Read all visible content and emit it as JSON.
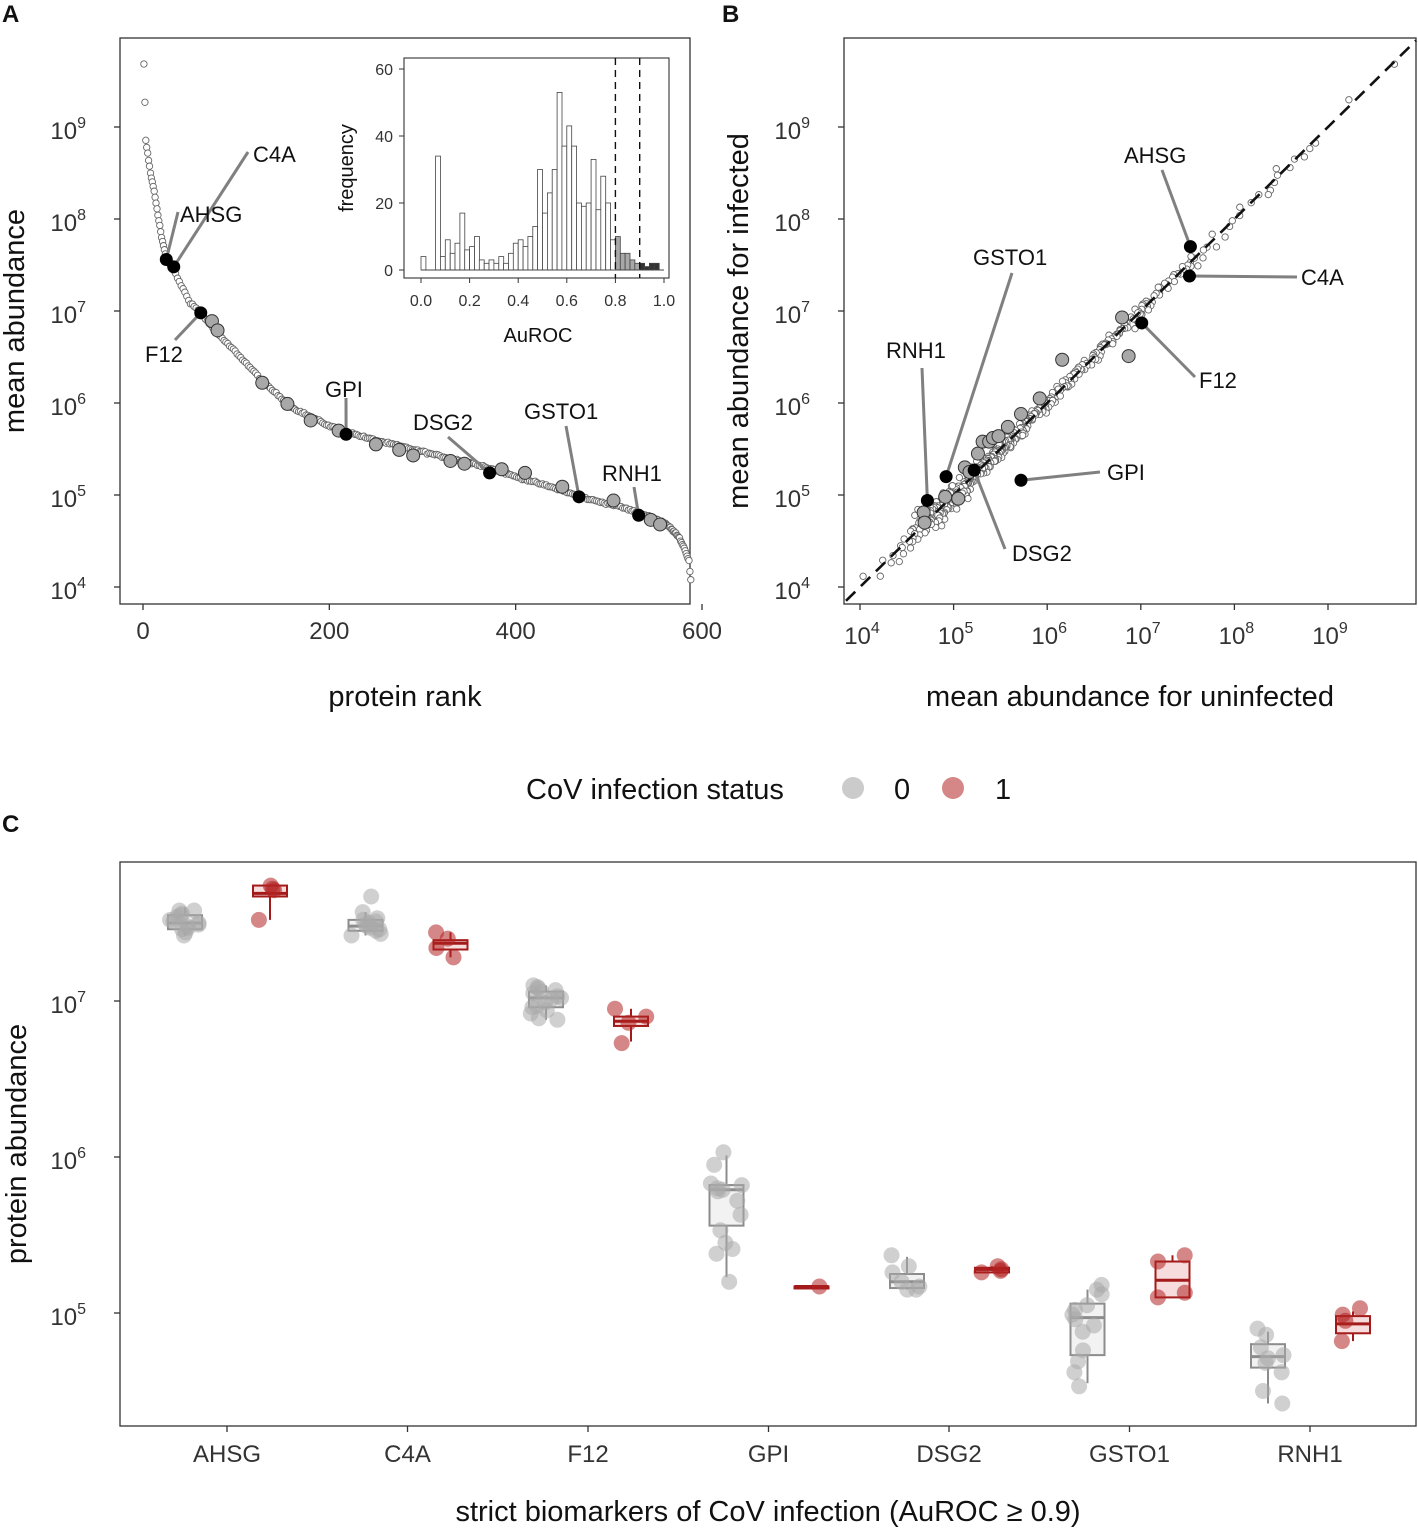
{
  "figure": {
    "panels": [
      {
        "id": "A",
        "label": "A"
      },
      {
        "id": "B",
        "label": "B"
      },
      {
        "id": "C",
        "label": "C"
      }
    ]
  },
  "legend": {
    "title": "CoV infection status",
    "items": [
      {
        "label": "0",
        "color": "#a9a9a9"
      },
      {
        "label": "1",
        "color": "#b22222"
      }
    ]
  },
  "chart_data": [
    {
      "panel": "A",
      "type": "scatter",
      "xlabel": "protein rank",
      "ylabel": "mean abundance",
      "xlim": [
        0,
        600
      ],
      "ylim_log10": [
        3.85,
        10.0
      ],
      "xticks": [
        "0",
        "200",
        "400",
        "600"
      ],
      "yticks": [
        {
          "base": "10",
          "exp": "4"
        },
        {
          "base": "10",
          "exp": "5"
        },
        {
          "base": "10",
          "exp": "6"
        },
        {
          "base": "10",
          "exp": "7"
        },
        {
          "base": "10",
          "exp": "8"
        },
        {
          "base": "10",
          "exp": "9"
        }
      ],
      "curve_log10": [
        [
          1,
          9.68
        ],
        [
          3,
          8.85
        ],
        [
          8,
          8.5
        ],
        [
          12,
          8.3
        ],
        [
          16,
          8.05
        ],
        [
          20,
          7.8
        ],
        [
          25,
          7.57
        ],
        [
          30,
          7.5
        ],
        [
          40,
          7.3
        ],
        [
          50,
          7.1
        ],
        [
          62,
          6.98
        ],
        [
          80,
          6.75
        ],
        [
          100,
          6.55
        ],
        [
          130,
          6.22
        ],
        [
          160,
          5.95
        ],
        [
          200,
          5.75
        ],
        [
          240,
          5.62
        ],
        [
          280,
          5.52
        ],
        [
          320,
          5.42
        ],
        [
          360,
          5.33
        ],
        [
          400,
          5.2
        ],
        [
          440,
          5.08
        ],
        [
          480,
          4.95
        ],
        [
          510,
          4.88
        ],
        [
          540,
          4.78
        ],
        [
          560,
          4.7
        ],
        [
          575,
          4.55
        ],
        [
          582,
          4.4
        ],
        [
          586,
          4.28
        ],
        [
          588,
          4.07
        ]
      ],
      "highlighted_grey": [
        [
          74,
          6.89
        ],
        [
          80,
          6.79
        ],
        [
          128,
          6.22
        ],
        [
          155,
          5.99
        ],
        [
          180,
          5.81
        ],
        [
          210,
          5.7
        ],
        [
          250,
          5.55
        ],
        [
          275,
          5.49
        ],
        [
          290,
          5.43
        ],
        [
          330,
          5.37
        ],
        [
          345,
          5.34
        ],
        [
          385,
          5.28
        ],
        [
          410,
          5.24
        ],
        [
          450,
          5.09
        ],
        [
          505,
          4.94
        ],
        [
          545,
          4.73
        ],
        [
          555,
          4.68
        ]
      ],
      "labeled": [
        {
          "name": "C4A",
          "x": 33,
          "y": 7.48
        },
        {
          "name": "AHSG",
          "x": 25,
          "y": 7.56
        },
        {
          "name": "F12",
          "x": 62,
          "y": 6.98
        },
        {
          "name": "GPI",
          "x": 218,
          "y": 5.66
        },
        {
          "name": "DSG2",
          "x": 372,
          "y": 5.24
        },
        {
          "name": "GSTO1",
          "x": 468,
          "y": 4.98
        },
        {
          "name": "RNH1",
          "x": 532,
          "y": 4.78
        }
      ],
      "inset": {
        "type": "histogram",
        "xlabel": "AuROC",
        "ylabel": "frequency",
        "xlim": [
          -0.05,
          1.02
        ],
        "ylim": [
          0,
          62
        ],
        "xticks": [
          "0.0",
          "0.2",
          "0.4",
          "0.6",
          "0.8",
          "1.0"
        ],
        "yticks": [
          "0",
          "20",
          "40",
          "60"
        ],
        "vlines": [
          0.8,
          0.9
        ],
        "bin_width": 0.02,
        "bins_start": [
          0.0,
          0.02,
          0.04,
          0.06,
          0.08,
          0.1,
          0.12,
          0.14,
          0.16,
          0.18,
          0.2,
          0.22,
          0.24,
          0.26,
          0.28,
          0.3,
          0.32,
          0.34,
          0.36,
          0.38,
          0.4,
          0.42,
          0.44,
          0.46,
          0.48,
          0.5,
          0.52,
          0.54,
          0.56,
          0.58,
          0.6,
          0.62,
          0.64,
          0.66,
          0.68,
          0.7,
          0.72,
          0.74,
          0.76,
          0.78,
          0.8,
          0.82,
          0.84,
          0.86,
          0.88,
          0.9,
          0.92,
          0.94,
          0.96
        ],
        "counts": [
          4,
          0,
          0,
          34,
          4,
          9,
          5,
          8,
          17,
          6,
          7,
          10,
          3,
          2,
          3,
          2,
          4,
          2,
          5,
          8,
          9,
          7,
          10,
          13,
          30,
          17,
          23,
          30,
          53,
          37,
          43,
          37,
          20,
          19,
          20,
          33,
          18,
          28,
          20,
          9,
          10,
          5,
          5,
          3,
          2,
          2,
          1,
          2,
          2
        ]
      }
    },
    {
      "panel": "B",
      "type": "scatter",
      "xlabel": "mean abundance for uninfected",
      "ylabel": "mean abundance for infected",
      "xlim_log10": [
        3.85,
        9.95
      ],
      "ylim_log10": [
        3.85,
        9.95
      ],
      "ticks": [
        {
          "base": "10",
          "exp": "4"
        },
        {
          "base": "10",
          "exp": "5"
        },
        {
          "base": "10",
          "exp": "6"
        },
        {
          "base": "10",
          "exp": "7"
        },
        {
          "base": "10",
          "exp": "8"
        },
        {
          "base": "10",
          "exp": "9"
        }
      ],
      "reference_line": "y = x",
      "highlighted_grey": [
        [
          4.68,
          4.81
        ],
        [
          4.69,
          4.7
        ],
        [
          4.91,
          4.98
        ],
        [
          5.05,
          4.96
        ],
        [
          5.12,
          5.3
        ],
        [
          5.17,
          5.25
        ],
        [
          5.26,
          5.45
        ],
        [
          5.31,
          5.58
        ],
        [
          5.38,
          5.58
        ],
        [
          5.42,
          5.62
        ],
        [
          5.48,
          5.64
        ],
        [
          5.58,
          5.74
        ],
        [
          5.72,
          5.88
        ],
        [
          5.92,
          6.05
        ],
        [
          6.16,
          6.47
        ],
        [
          6.8,
          6.93
        ],
        [
          6.87,
          6.51
        ]
      ],
      "labeled": [
        {
          "name": "AHSG",
          "x": 7.53,
          "y": 7.7
        },
        {
          "name": "C4A",
          "x": 7.52,
          "y": 7.38
        },
        {
          "name": "F12",
          "x": 7.01,
          "y": 6.87
        },
        {
          "name": "GSTO1",
          "x": 4.92,
          "y": 5.2
        },
        {
          "name": "RNH1",
          "x": 4.72,
          "y": 4.94
        },
        {
          "name": "GPI",
          "x": 5.72,
          "y": 5.16
        },
        {
          "name": "DSG2",
          "x": 5.22,
          "y": 5.27
        }
      ]
    },
    {
      "panel": "C",
      "type": "box",
      "xlabel": "strict biomarkers of CoV infection (AuROC ≥ 0.9)",
      "ylabel": "protein abundance",
      "ylim_log10": [
        4.24,
        7.92
      ],
      "categories": [
        "AHSG",
        "C4A",
        "F12",
        "GPI",
        "DSG2",
        "GSTO1",
        "RNH1"
      ],
      "yticks": [
        {
          "base": "10",
          "exp": "5"
        },
        {
          "base": "10",
          "exp": "6"
        },
        {
          "base": "10",
          "exp": "7"
        }
      ],
      "series": [
        {
          "name": "0",
          "color": "#a9a9a9",
          "boxes": [
            {
              "category": "AHSG",
              "q1": 7.46,
              "median": 7.5,
              "q3": 7.55,
              "low": 7.42,
              "high": 7.6,
              "points": [
                7.58,
                7.56,
                7.54,
                7.52,
                7.51,
                7.5,
                7.49,
                7.48,
                7.47,
                7.46,
                7.44,
                7.42,
                7.58,
                7.55
              ]
            },
            {
              "category": "C4A",
              "q1": 7.45,
              "median": 7.48,
              "q3": 7.52,
              "low": 7.42,
              "high": 7.57,
              "points": [
                7.67,
                7.57,
                7.53,
                7.51,
                7.5,
                7.49,
                7.48,
                7.47,
                7.46,
                7.45,
                7.43,
                7.42,
                7.52
              ]
            },
            {
              "category": "F12",
              "q1": 6.96,
              "median": 7.02,
              "q3": 7.06,
              "low": 6.88,
              "high": 7.1,
              "points": [
                7.1,
                7.09,
                7.08,
                7.07,
                7.06,
                7.05,
                7.03,
                7.02,
                7.01,
                6.99,
                6.97,
                6.96,
                6.94,
                6.92,
                6.89,
                6.88
              ]
            },
            {
              "category": "GPI",
              "q1": 5.56,
              "median": 5.79,
              "q3": 5.82,
              "low": 5.23,
              "high": 6.01,
              "points": [
                6.03,
                5.95,
                5.83,
                5.82,
                5.8,
                5.79,
                5.78,
                5.72,
                5.63,
                5.53,
                5.45,
                5.41,
                5.38,
                5.2
              ]
            },
            {
              "category": "DSG2",
              "q1": 5.16,
              "median": 5.2,
              "q3": 5.25,
              "low": 5.15,
              "high": 5.36,
              "points": [
                5.37,
                5.3,
                5.26,
                5.2,
                5.17,
                5.15,
                5.15
              ]
            },
            {
              "category": "GSTO1",
              "q1": 4.73,
              "median": 4.97,
              "q3": 5.06,
              "low": 4.55,
              "high": 5.15,
              "points": [
                5.18,
                5.15,
                5.12,
                5.05,
                5.02,
                4.99,
                4.96,
                4.92,
                4.88,
                4.76,
                4.69,
                4.62,
                4.53
              ]
            },
            {
              "category": "RNH1",
              "q1": 4.65,
              "median": 4.72,
              "q3": 4.8,
              "low": 4.42,
              "high": 4.88,
              "points": [
                4.9,
                4.86,
                4.78,
                4.73,
                4.71,
                4.68,
                4.62,
                4.5,
                4.42
              ]
            }
          ]
        },
        {
          "name": "1",
          "color": "#b22222",
          "boxes": [
            {
              "category": "AHSG",
              "q1": 7.67,
              "median": 7.69,
              "q3": 7.74,
              "low": 7.52,
              "high": 7.74,
              "points": [
                7.74,
                7.72,
                7.71,
                7.52
              ]
            },
            {
              "category": "C4A",
              "q1": 7.33,
              "median": 7.37,
              "q3": 7.39,
              "low": 7.28,
              "high": 7.44,
              "points": [
                7.44,
                7.4,
                7.34,
                7.28
              ]
            },
            {
              "category": "F12",
              "q1": 6.84,
              "median": 6.87,
              "q3": 6.9,
              "low": 6.74,
              "high": 6.95,
              "points": [
                6.95,
                6.9,
                6.86,
                6.73
              ]
            },
            {
              "category": "GPI",
              "q1": 5.17,
              "median": 5.17,
              "q3": 5.17,
              "low": 5.17,
              "high": 5.17,
              "points": [
                5.17
              ]
            },
            {
              "category": "DSG2",
              "q1": 5.26,
              "median": 5.28,
              "q3": 5.29,
              "low": 5.26,
              "high": 5.3,
              "points": [
                5.3,
                5.28,
                5.27,
                5.26
              ]
            },
            {
              "category": "GSTO1",
              "q1": 5.1,
              "median": 5.21,
              "q3": 5.33,
              "low": 5.1,
              "high": 5.37,
              "points": [
                5.37,
                5.33,
                5.13,
                5.1
              ]
            },
            {
              "category": "RNH1",
              "q1": 4.87,
              "median": 4.93,
              "q3": 4.98,
              "low": 4.82,
              "high": 5.01,
              "points": [
                5.03,
                4.99,
                4.95,
                4.82
              ]
            }
          ]
        }
      ]
    }
  ]
}
